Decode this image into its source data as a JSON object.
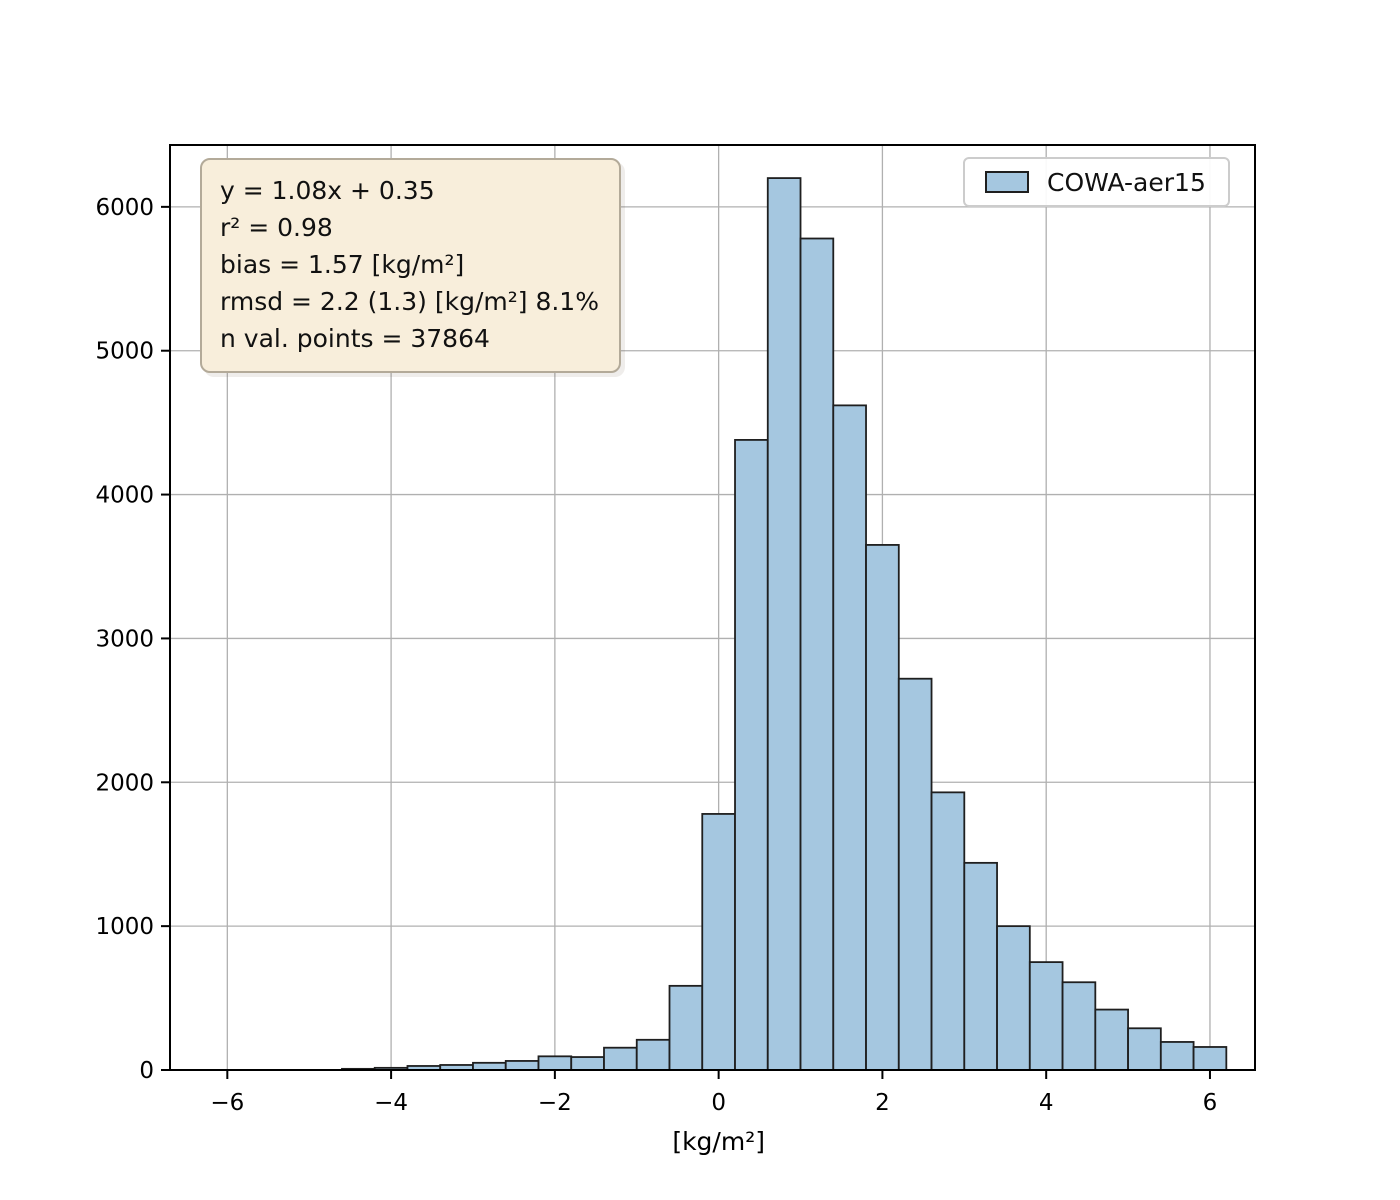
{
  "figure": {
    "background": "#ffffff"
  },
  "legend": {
    "label": "COWA-aer15"
  },
  "stats": {
    "lines": [
      "y = 1.08x + 0.35",
      "r² = 0.98",
      "bias = 1.57 [kg/m²]",
      "rmsd = 2.2 (1.3) [kg/m²] 8.1%",
      "n val. points = 37864"
    ]
  },
  "chart_data": {
    "type": "bar",
    "subtype": "histogram",
    "series_label": "COWA-aer15",
    "title": "",
    "xlabel": "[kg/m²]",
    "ylabel": "",
    "bin_start": -4.6,
    "bin_width": 0.4,
    "counts": [
      8,
      15,
      28,
      35,
      50,
      63,
      95,
      90,
      155,
      210,
      585,
      1780,
      4380,
      6200,
      5780,
      4620,
      3650,
      2720,
      1930,
      1440,
      1000,
      750,
      610,
      420,
      290,
      195,
      160
    ],
    "xticks": {
      "values": [
        -6,
        -4,
        -2,
        0,
        2,
        4,
        6
      ],
      "labels": [
        "−6",
        "−4",
        "−2",
        "0",
        "2",
        "4",
        "6"
      ]
    },
    "yticks": {
      "values": [
        0,
        1000,
        2000,
        3000,
        4000,
        5000,
        6000
      ],
      "labels": [
        "0",
        "1000",
        "2000",
        "3000",
        "4000",
        "5000",
        "6000"
      ]
    },
    "xlim": [
      -6.7,
      6.55
    ],
    "ylim": [
      0,
      6430
    ],
    "grid": true,
    "legend_position": "upper right",
    "annotation_lines": [
      "y = 1.08x + 0.35",
      "r² = 0.98",
      "bias = 1.57 [kg/m²]",
      "rmsd = 2.2 (1.3) [kg/m²] 8.1%",
      "n val. points = 37864"
    ],
    "fit_stats": {
      "fit_equation": "y = 1.08x + 0.35",
      "r2": 0.98,
      "bias_kg_m2": 1.57,
      "rmsd": "2.2 (1.3)",
      "rmsd_percent": "8.1%",
      "n_val_points": 37864
    },
    "colors": {
      "bar_fill": "#a5c7e0",
      "bar_edge": "#1f1f1f",
      "grid": "#b0b0b0",
      "spine": "#000000",
      "stats_box_bg": "#f8eedb",
      "stats_box_border": "#b3aa99",
      "legend_border": "#cccccc"
    }
  }
}
